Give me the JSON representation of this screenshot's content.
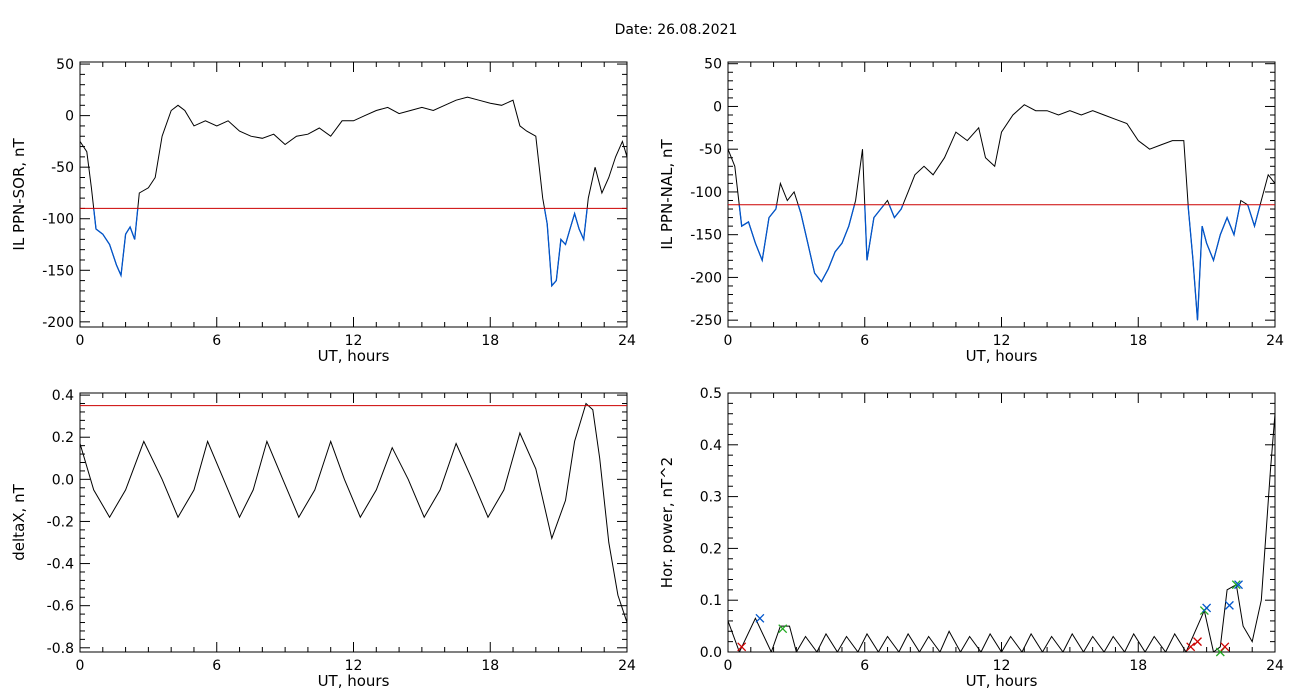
{
  "title": "Date:  26.08.2021",
  "colors": {
    "series": "#000000",
    "threshold": "#cc0000",
    "highlight": "#0055cc",
    "marker_red": "#cc0000",
    "marker_green": "#22aa22",
    "marker_blue": "#0055cc"
  },
  "chart_data": [
    {
      "type": "line",
      "id": "ppn-sor",
      "xlabel": "UT, hours",
      "ylabel": "IL PPN-SOR, nT",
      "xlim": [
        0,
        24
      ],
      "ylim": [
        -205,
        52
      ],
      "xticks": [
        0,
        6,
        12,
        18,
        24
      ],
      "yticks": [
        -200,
        -150,
        -100,
        -50,
        0,
        50
      ],
      "threshold": -90,
      "highlight_below_threshold": true,
      "x": [
        0,
        0.3,
        0.5,
        0.7,
        1.0,
        1.3,
        1.6,
        1.8,
        2.0,
        2.2,
        2.4,
        2.6,
        3.0,
        3.3,
        3.6,
        4.0,
        4.3,
        4.6,
        5.0,
        5.5,
        6.0,
        6.5,
        7.0,
        7.5,
        8.0,
        8.5,
        9.0,
        9.5,
        10.0,
        10.5,
        11.0,
        11.5,
        12.0,
        12.5,
        13.0,
        13.5,
        14.0,
        14.5,
        15.0,
        15.5,
        16.0,
        16.5,
        17.0,
        17.5,
        18.0,
        18.5,
        19.0,
        19.3,
        19.6,
        20.0,
        20.3,
        20.5,
        20.7,
        20.9,
        21.1,
        21.3,
        21.5,
        21.7,
        21.9,
        22.1,
        22.3,
        22.6,
        22.9,
        23.2,
        23.5,
        23.8,
        24.0
      ],
      "values": [
        -25,
        -35,
        -70,
        -110,
        -115,
        -125,
        -145,
        -155,
        -115,
        -108,
        -120,
        -75,
        -70,
        -60,
        -20,
        5,
        10,
        5,
        -10,
        -5,
        -10,
        -5,
        -15,
        -20,
        -22,
        -18,
        -28,
        -20,
        -18,
        -12,
        -20,
        -5,
        -5,
        0,
        5,
        8,
        2,
        5,
        8,
        5,
        10,
        15,
        18,
        15,
        12,
        10,
        15,
        -10,
        -15,
        -20,
        -80,
        -105,
        -165,
        -160,
        -120,
        -125,
        -110,
        -95,
        -110,
        -120,
        -80,
        -50,
        -75,
        -60,
        -40,
        -25,
        -40
      ]
    },
    {
      "type": "line",
      "id": "ppn-nal",
      "xlabel": "UT, hours",
      "ylabel": "IL PPN-NAL, nT",
      "xlim": [
        0,
        24
      ],
      "ylim": [
        -258,
        52
      ],
      "xticks": [
        0,
        6,
        12,
        18,
        24
      ],
      "yticks": [
        -250,
        -200,
        -150,
        -100,
        -50,
        0,
        50
      ],
      "threshold": -115,
      "highlight_below_threshold": true,
      "x": [
        0,
        0.3,
        0.6,
        0.9,
        1.2,
        1.5,
        1.8,
        2.1,
        2.3,
        2.6,
        2.9,
        3.2,
        3.5,
        3.8,
        4.1,
        4.4,
        4.7,
        5.0,
        5.3,
        5.6,
        5.9,
        6.1,
        6.4,
        6.7,
        7.0,
        7.3,
        7.6,
        7.9,
        8.2,
        8.6,
        9.0,
        9.5,
        10.0,
        10.5,
        11.0,
        11.3,
        11.7,
        12.0,
        12.5,
        13.0,
        13.5,
        14.0,
        14.5,
        15.0,
        15.5,
        16.0,
        16.5,
        17.0,
        17.5,
        18.0,
        18.5,
        19.0,
        19.5,
        20.0,
        20.2,
        20.4,
        20.6,
        20.8,
        21.0,
        21.3,
        21.6,
        21.9,
        22.2,
        22.5,
        22.8,
        23.1,
        23.4,
        23.7,
        24.0
      ],
      "values": [
        -50,
        -70,
        -140,
        -135,
        -160,
        -180,
        -130,
        -120,
        -90,
        -110,
        -100,
        -125,
        -160,
        -195,
        -205,
        -190,
        -170,
        -160,
        -140,
        -110,
        -50,
        -180,
        -130,
        -120,
        -110,
        -130,
        -120,
        -100,
        -80,
        -70,
        -80,
        -60,
        -30,
        -40,
        -25,
        -60,
        -70,
        -30,
        -10,
        2,
        -5,
        -5,
        -10,
        -5,
        -10,
        -5,
        -10,
        -15,
        -20,
        -40,
        -50,
        -45,
        -40,
        -40,
        -120,
        -180,
        -250,
        -140,
        -160,
        -180,
        -150,
        -130,
        -150,
        -110,
        -115,
        -140,
        -110,
        -80,
        -90
      ]
    },
    {
      "type": "line",
      "id": "delta-x",
      "xlabel": "UT, hours",
      "ylabel": "deltaX, nT",
      "xlim": [
        0,
        24
      ],
      "ylim": [
        -0.82,
        0.41
      ],
      "xticks": [
        0,
        6,
        12,
        18,
        24
      ],
      "yticks": [
        -0.8,
        -0.6,
        -0.4,
        -0.2,
        0.0,
        0.2,
        0.4
      ],
      "tick_format": 1,
      "threshold": 0.35,
      "x": [
        0,
        0.6,
        1.3,
        2.0,
        2.8,
        3.6,
        4.3,
        5.0,
        5.6,
        6.3,
        7.0,
        7.6,
        8.2,
        8.9,
        9.6,
        10.3,
        11.0,
        11.6,
        12.3,
        13.0,
        13.7,
        14.4,
        15.1,
        15.8,
        16.5,
        17.2,
        17.9,
        18.6,
        19.3,
        20.0,
        20.7,
        21.3,
        21.7,
        22.2,
        22.5,
        22.8,
        23.2,
        23.6,
        24.0
      ],
      "values": [
        0.17,
        -0.05,
        -0.18,
        -0.05,
        0.18,
        0.0,
        -0.18,
        -0.05,
        0.18,
        0.0,
        -0.18,
        -0.05,
        0.18,
        0.0,
        -0.18,
        -0.05,
        0.18,
        0.0,
        -0.18,
        -0.05,
        0.15,
        0.0,
        -0.18,
        -0.05,
        0.17,
        0.0,
        -0.18,
        -0.05,
        0.22,
        0.05,
        -0.28,
        -0.1,
        0.18,
        0.36,
        0.33,
        0.1,
        -0.3,
        -0.55,
        -0.68
      ]
    },
    {
      "type": "line",
      "id": "hor-power",
      "xlabel": "UT, hours",
      "ylabel": "Hor. power, nT^2",
      "xlim": [
        0,
        24
      ],
      "ylim": [
        0,
        0.5
      ],
      "xticks": [
        0,
        6,
        12,
        18,
        24
      ],
      "yticks": [
        0.0,
        0.1,
        0.2,
        0.3,
        0.4,
        0.5
      ],
      "tick_format": 1,
      "x": [
        0,
        0.5,
        1.2,
        1.9,
        2.3,
        2.7,
        3.0,
        3.4,
        3.9,
        4.3,
        4.8,
        5.2,
        5.7,
        6.1,
        6.6,
        7.0,
        7.5,
        7.9,
        8.4,
        8.8,
        9.3,
        9.7,
        10.2,
        10.6,
        11.1,
        11.5,
        12.0,
        12.4,
        12.9,
        13.3,
        13.8,
        14.2,
        14.7,
        15.1,
        15.6,
        16.0,
        16.5,
        16.9,
        17.4,
        17.8,
        18.3,
        18.7,
        19.2,
        19.6,
        20.1,
        20.5,
        20.9,
        21.3,
        21.6,
        21.9,
        22.3,
        22.6,
        23.0,
        23.4,
        23.8,
        24.0
      ],
      "values": [
        0.06,
        0.0,
        0.065,
        0.0,
        0.05,
        0.05,
        0.0,
        0.03,
        0.0,
        0.035,
        0.0,
        0.03,
        0.0,
        0.035,
        0.0,
        0.03,
        0.0,
        0.035,
        0.0,
        0.03,
        0.0,
        0.04,
        0.0,
        0.03,
        0.0,
        0.035,
        0.0,
        0.03,
        0.0,
        0.035,
        0.0,
        0.03,
        0.0,
        0.035,
        0.0,
        0.03,
        0.0,
        0.03,
        0.0,
        0.035,
        0.0,
        0.03,
        0.0,
        0.035,
        0.0,
        0.04,
        0.08,
        0.0,
        0.01,
        0.12,
        0.13,
        0.05,
        0.02,
        0.1,
        0.35,
        0.46
      ],
      "markers": [
        {
          "x": 0.6,
          "y": 0.01,
          "color": "marker_red"
        },
        {
          "x": 1.4,
          "y": 0.065,
          "color": "marker_blue"
        },
        {
          "x": 2.4,
          "y": 0.045,
          "color": "marker_green"
        },
        {
          "x": 20.3,
          "y": 0.01,
          "color": "marker_red"
        },
        {
          "x": 20.6,
          "y": 0.02,
          "color": "marker_red"
        },
        {
          "x": 20.9,
          "y": 0.08,
          "color": "marker_green"
        },
        {
          "x": 21.0,
          "y": 0.085,
          "color": "marker_blue"
        },
        {
          "x": 21.6,
          "y": 0.0,
          "color": "marker_green"
        },
        {
          "x": 21.8,
          "y": 0.01,
          "color": "marker_red"
        },
        {
          "x": 22.0,
          "y": 0.09,
          "color": "marker_blue"
        },
        {
          "x": 22.3,
          "y": 0.13,
          "color": "marker_green"
        },
        {
          "x": 22.4,
          "y": 0.13,
          "color": "marker_blue"
        }
      ]
    }
  ]
}
